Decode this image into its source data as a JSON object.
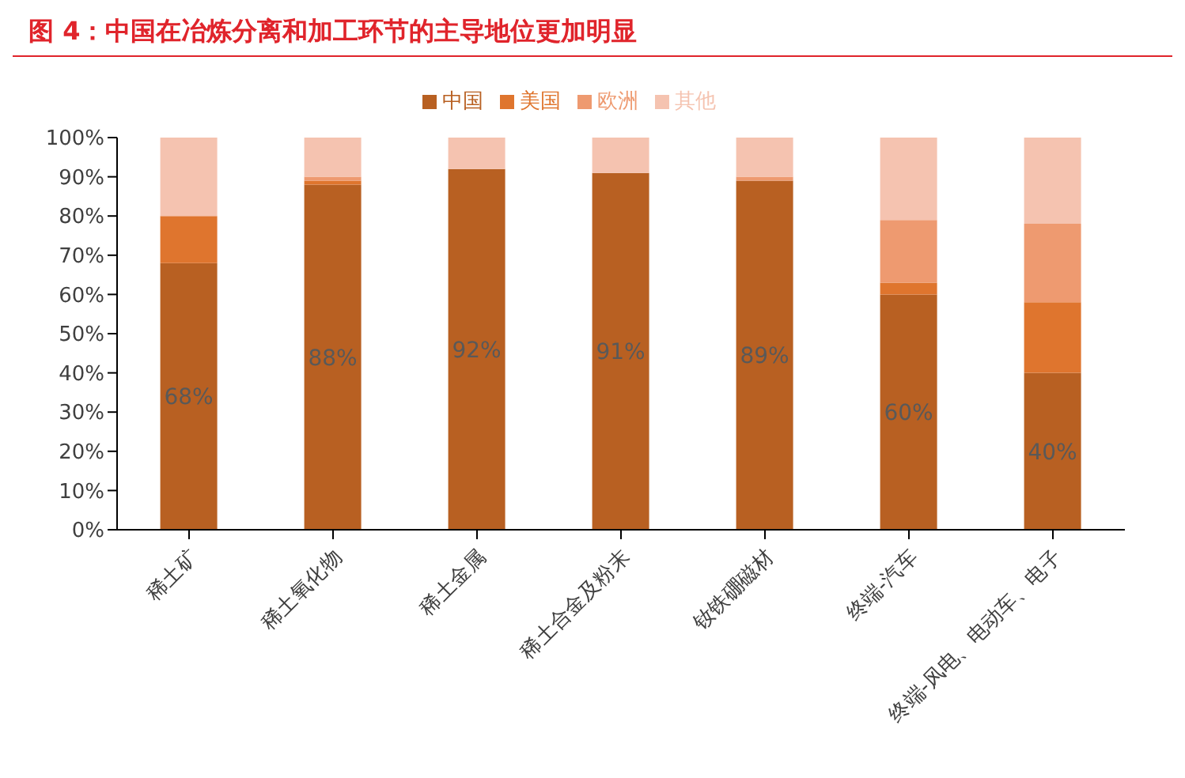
{
  "chart_data": {
    "type": "bar",
    "title": "图 4：中国在冶炼分离和加工环节的主导地位更加明显",
    "stacked": true,
    "categories": [
      "稀土矿",
      "稀土氧化物",
      "稀土金属",
      "稀土合金及粉末",
      "钕铁硼磁材",
      "终端-汽车",
      "终端-风电、电动车、电子"
    ],
    "series": [
      {
        "name": "中国",
        "color": "#b86022",
        "values": [
          68,
          88,
          92,
          91,
          89,
          60,
          40
        ],
        "value_labels": [
          "68%",
          "88%",
          "92%",
          "91%",
          "89%",
          "60%",
          "40%"
        ]
      },
      {
        "name": "美国",
        "color": "#df752e",
        "values": [
          12,
          1,
          0,
          0,
          0,
          3,
          18
        ]
      },
      {
        "name": "欧洲",
        "color": "#ee9a70",
        "values": [
          0,
          1,
          0,
          0,
          1,
          16,
          20
        ]
      },
      {
        "name": "其他",
        "color": "#f5c3b0",
        "values": [
          20,
          10,
          8,
          9,
          10,
          21,
          22
        ]
      }
    ],
    "ylim": [
      0,
      100
    ],
    "yticks": [
      {
        "value": 0,
        "label": "0%"
      },
      {
        "value": 10,
        "label": "10%"
      },
      {
        "value": 20,
        "label": "20%"
      },
      {
        "value": 30,
        "label": "30%"
      },
      {
        "value": 40,
        "label": "40%"
      },
      {
        "value": 50,
        "label": "50%"
      },
      {
        "value": 60,
        "label": "60%"
      },
      {
        "value": 70,
        "label": "70%"
      },
      {
        "value": 80,
        "label": "80%"
      },
      {
        "value": 90,
        "label": "90%"
      },
      {
        "value": 100,
        "label": "100%"
      }
    ],
    "grid": false,
    "legend": "top"
  }
}
